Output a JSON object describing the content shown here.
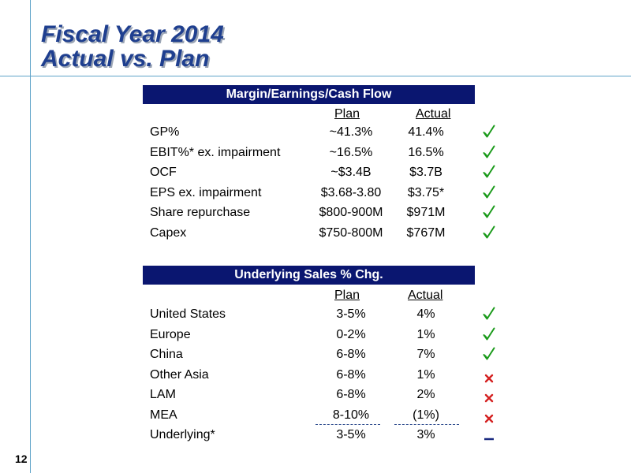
{
  "title": {
    "line1": "Fiscal Year 2014",
    "line2": "Actual vs. Plan"
  },
  "margin_section": {
    "header": "Margin/Earnings/Cash Flow",
    "plan_label": "Plan",
    "actual_label": "Actual",
    "rows": [
      {
        "label": "GP%",
        "plan": "~41.3%",
        "actual": "41.4%",
        "status": "check"
      },
      {
        "label": "EBIT%* ex. impairment",
        "plan": "~16.5%",
        "actual": "16.5%",
        "status": "check"
      },
      {
        "label": "OCF",
        "plan": "~$3.4B",
        "actual": "$3.7B",
        "status": "check"
      },
      {
        "label": "EPS ex. impairment",
        "plan": "$3.68-3.80",
        "actual": "$3.75*",
        "status": "check"
      },
      {
        "label": "Share repurchase",
        "plan": "$800-900M",
        "actual": "$971M",
        "status": "check"
      },
      {
        "label": "Capex",
        "plan": "$750-800M",
        "actual": "$767M",
        "status": "check"
      }
    ]
  },
  "sales_section": {
    "header": "Underlying Sales % Chg.",
    "plan_label": "Plan",
    "actual_label": "Actual",
    "rows": [
      {
        "label": "United States",
        "plan": "3-5%",
        "actual": "4%",
        "status": "check"
      },
      {
        "label": "Europe",
        "plan": "0-2%",
        "actual": "1%",
        "status": "check"
      },
      {
        "label": "China",
        "plan": "6-8%",
        "actual": "7%",
        "status": "check"
      },
      {
        "label": "Other Asia",
        "plan": "6-8%",
        "actual": "1%",
        "status": "cross"
      },
      {
        "label": "LAM",
        "plan": "6-8%",
        "actual": "2%",
        "status": "cross"
      },
      {
        "label": "MEA",
        "plan": "8-10%",
        "actual": "(1%)",
        "status": "cross"
      },
      {
        "label": "Underlying*",
        "plan": "3-5%",
        "actual": "3%",
        "status": "dash"
      }
    ]
  },
  "page_number": "12",
  "colors": {
    "title": "#1f3f8f",
    "header_bar": "#0a1670",
    "check": "#1a9a1a",
    "cross": "#d42020",
    "dash": "#1a2a80",
    "guide_line": "#5fa3c9"
  }
}
